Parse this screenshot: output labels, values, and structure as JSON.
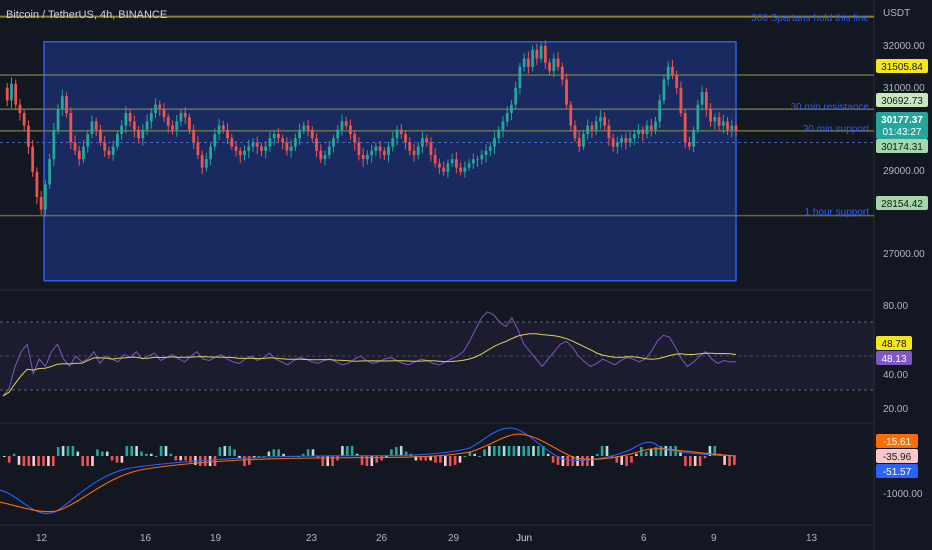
{
  "header": {
    "symbol": "Bitcoin / TetherUS, 4h, BINANCE"
  },
  "currency": "USDT",
  "price_axis": [
    "32000.00",
    "31000.00",
    "29000.00",
    "27000.00"
  ],
  "rsi_axis": [
    "80.00",
    "40.00",
    "20.00"
  ],
  "macd_axis": [
    "-1000.00"
  ],
  "time_axis": [
    "12",
    "16",
    "19",
    "23",
    "26",
    "29",
    "Jun",
    "6",
    "9",
    "13"
  ],
  "annotations": {
    "spartans": "300 Spartans hold this line",
    "resistance": "30 min resistance",
    "support30": "30 min support",
    "support1h": "1 hour support"
  },
  "tags": {
    "t1": "31505.84",
    "t2": "30692.73",
    "last_price": "30177.37",
    "countdown": "01:43:27",
    "t3": "30174.31",
    "t4": "28154.42",
    "rsi_ma": "48.78",
    "rsi": "48.13",
    "macd_a": "-15.61",
    "macd_b": "-35.96",
    "macd_c": "-51.57"
  },
  "colors": {
    "up": "#26a69a",
    "down": "#ef5350",
    "range_box": "#1f3a93",
    "level_line": "#8a8a3a",
    "rsi_line": "#7e57c2",
    "rsi_ma": "#e0d050",
    "macd_line": "#2962ff",
    "signal_line": "#ff6d00"
  },
  "chart_data": {
    "type": "candlestick",
    "y_range": [
      26500,
      33200
    ],
    "range_box": {
      "top": 32300,
      "bottom": 26600
    },
    "levels": [
      32900,
      31505.84,
      30692.73,
      30177.37,
      28154.42
    ],
    "dashed_level": 29900,
    "closes": [
      31200,
      30900,
      31300,
      30800,
      30600,
      30300,
      29800,
      29200,
      28600,
      28300,
      28900,
      29500,
      30200,
      30700,
      31000,
      30600,
      29900,
      29700,
      29500,
      29800,
      30100,
      30400,
      30200,
      29900,
      29700,
      29600,
      29800,
      30100,
      30300,
      30600,
      30400,
      30200,
      30000,
      30200,
      30400,
      30600,
      30800,
      30700,
      30500,
      30300,
      30200,
      30400,
      30600,
      30500,
      30200,
      29900,
      29600,
      29300,
      29500,
      29800,
      30100,
      30300,
      30200,
      30000,
      29800,
      29700,
      29600,
      29700,
      29800,
      29900,
      29800,
      29700,
      29800,
      30000,
      30100,
      30000,
      29900,
      29700,
      29800,
      30000,
      30200,
      30300,
      30200,
      30000,
      29700,
      29500,
      29600,
      29800,
      30000,
      30200,
      30400,
      30300,
      30100,
      29900,
      29600,
      29500,
      29600,
      29700,
      29800,
      29700,
      29600,
      29800,
      30000,
      30200,
      30100,
      29900,
      29700,
      29600,
      29800,
      30000,
      29900,
      29600,
      29400,
      29300,
      29200,
      29400,
      29500,
      29300,
      29200,
      29300,
      29400,
      29500,
      29500,
      29600,
      29700,
      29800,
      30000,
      30200,
      30400,
      30600,
      30800,
      31200,
      31700,
      31900,
      31700,
      32100,
      31900,
      32200,
      31800,
      31600,
      31900,
      31700,
      31400,
      30800,
      30300,
      30000,
      29800,
      30100,
      30300,
      30200,
      30400,
      30500,
      30300,
      30000,
      29800,
      29900,
      30000,
      29900,
      30000,
      30100,
      30200,
      30100,
      30300,
      30200,
      30400,
      30900,
      31400,
      31700,
      31500,
      31200,
      30600,
      29900,
      29800,
      30200,
      30800,
      31100,
      30700,
      30400,
      30500,
      30300,
      30400,
      30200,
      30300,
      30177
    ],
    "rsi_axis_ticks": [
      80,
      40,
      20
    ],
    "rsi_levels": [
      70,
      50,
      30
    ],
    "rsi": [
      25,
      30,
      45,
      55,
      60,
      40,
      50,
      45,
      55,
      60,
      50,
      45,
      52,
      48,
      50,
      55,
      47,
      52,
      50,
      48,
      53,
      51,
      55,
      50,
      52,
      54,
      49,
      51,
      53,
      50,
      48,
      52,
      55,
      50,
      49,
      51,
      53,
      50,
      48,
      47,
      50,
      52,
      49,
      51,
      54,
      50,
      48,
      46,
      49,
      51,
      50,
      48,
      47,
      49,
      50,
      48,
      46,
      47,
      50,
      52,
      49,
      47,
      48,
      50,
      51,
      49,
      47,
      46,
      48,
      50,
      49,
      47,
      46,
      48,
      50,
      52,
      55,
      62,
      70,
      78,
      82,
      80,
      75,
      72,
      78,
      70,
      60,
      55,
      50,
      45,
      50,
      55,
      60,
      62,
      58,
      52,
      48,
      45,
      47,
      50,
      48,
      46,
      49,
      51,
      50,
      48,
      50,
      55,
      62,
      66,
      65,
      58,
      50,
      45,
      48,
      52,
      55,
      50,
      47,
      49,
      48,
      48
    ]
  }
}
